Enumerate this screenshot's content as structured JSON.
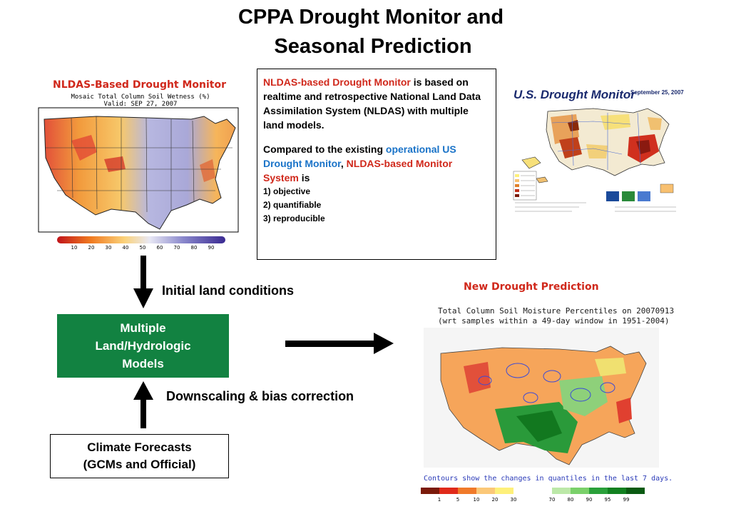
{
  "title": {
    "line1": "CPPA Drought Monitor and",
    "line2": "Seasonal Prediction"
  },
  "nldas_map": {
    "label": "NLDAS-Based Drought Monitor",
    "caption_line1": "Mosaic Total Column Soil Wetness (%)",
    "caption_line2": "Valid: SEP 27, 2007",
    "colorbar_ticks": [
      "10",
      "20",
      "30",
      "40",
      "50",
      "60",
      "70",
      "80",
      "90"
    ]
  },
  "info_box": {
    "p1_red": "NLDAS-based Drought Monitor",
    "p1_rest": " is based on realtime and retrospective National Land Data Assimilation System (NLDAS) with multiple land models.",
    "p2_start": "Compared to the existing ",
    "p2_blue": "operational US Drought Monitor",
    "p2_comma": ",",
    "p2_red": "NLDAS-based Monitor System",
    "p2_end": " is",
    "item1": "1) objective",
    "item2": "2) quantifiable",
    "item3": "3) reproducible"
  },
  "usdm_map": {
    "title": "U.S. Drought Monitor",
    "date": "September 25, 2007"
  },
  "new_prediction": {
    "label": "New Drought Prediction",
    "caption_line1": "Total Column Soil Moisture Percentiles on 20070913",
    "caption_line2": "(wrt samples within a 49-day window in 1951-2004)",
    "footer": "Contours show the changes in quantiles in the last 7 days.",
    "colorbar_ticks": [
      "1",
      "5",
      "10",
      "20",
      "30",
      "70",
      "80",
      "90",
      "95",
      "99"
    ]
  },
  "flow": {
    "initial_conditions": "Initial land conditions",
    "downscaling": "Downscaling & bias correction",
    "models_line1": "Multiple",
    "models_line2": "Land/Hydrologic",
    "models_line3": "Models",
    "forecasts_line1": "Climate Forecasts",
    "forecasts_line2": "(GCMs and Official)"
  },
  "colors": {
    "accent_red": "#d0281b",
    "accent_blue": "#1a73c8",
    "model_box_green": "#128241"
  }
}
